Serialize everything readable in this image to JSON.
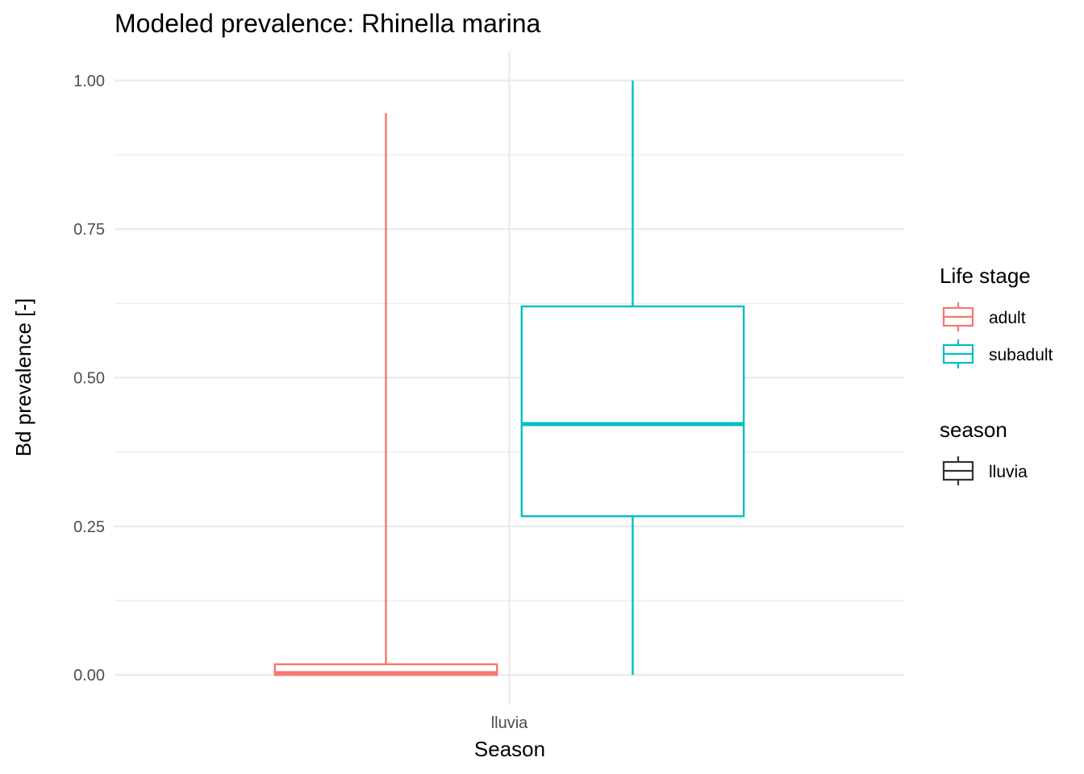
{
  "chart_data": {
    "type": "boxplot",
    "title": "Modeled prevalence: Rhinella marina",
    "xlabel": "Season",
    "ylabel": "Bd prevalence [-]",
    "categories": [
      "lluvia"
    ],
    "ylim": [
      -0.05,
      1.05
    ],
    "yticks": [
      0.0,
      0.25,
      0.5,
      0.75,
      1.0
    ],
    "ytick_labels": [
      "0.00",
      "0.25",
      "0.50",
      "0.75",
      "1.00"
    ],
    "grid": true,
    "legend_position": "right",
    "series": [
      {
        "name": "adult",
        "color": "#F8766D",
        "category": "lluvia",
        "min": 0.0,
        "q1": 0.0,
        "median": 0.003,
        "q3": 0.018,
        "max": 0.945
      },
      {
        "name": "subadult",
        "color": "#00BFC4",
        "category": "lluvia",
        "min": 0.0,
        "q1": 0.267,
        "median": 0.422,
        "q3": 0.62,
        "max": 1.0
      }
    ],
    "legends": [
      {
        "title": "Life stage",
        "entries": [
          {
            "label": "adult",
            "color": "#F8766D"
          },
          {
            "label": "subadult",
            "color": "#00BFC4"
          }
        ]
      },
      {
        "title": "season",
        "entries": [
          {
            "label": "lluvia",
            "color": "#333333"
          }
        ]
      }
    ]
  }
}
